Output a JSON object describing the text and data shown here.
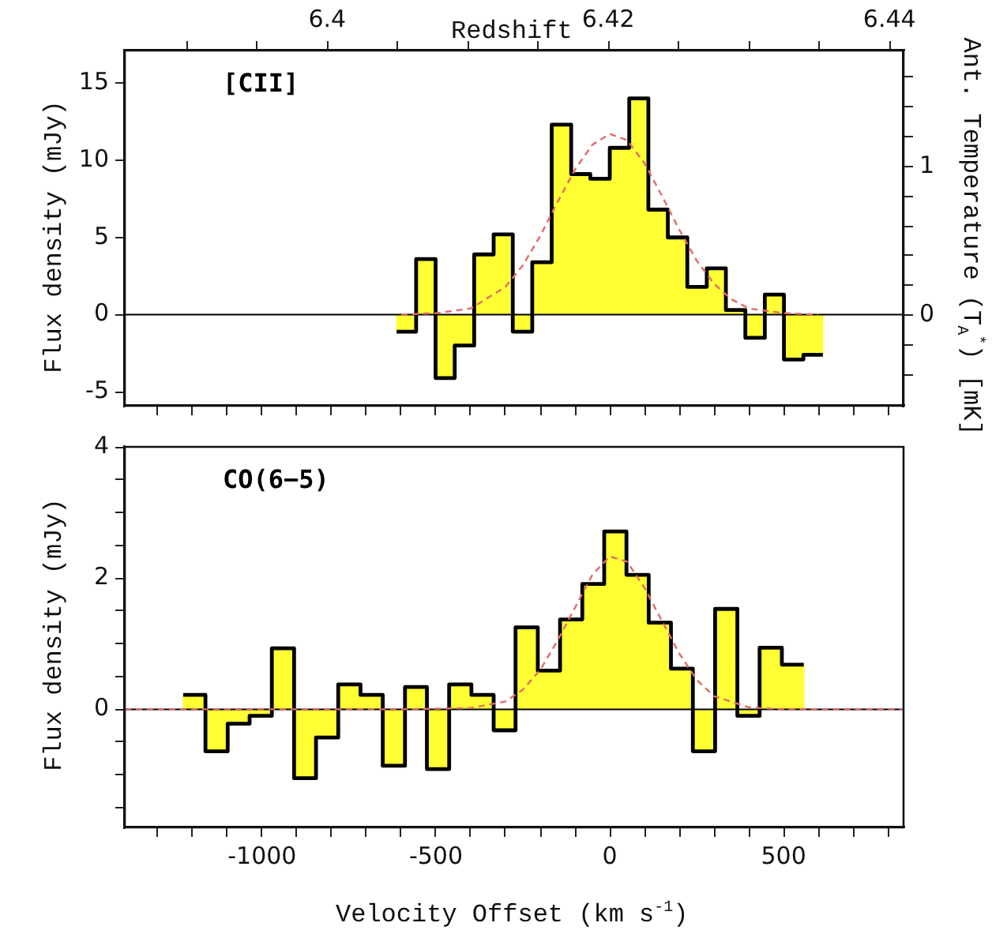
{
  "chart_data": [
    {
      "type": "histogram",
      "annotations": [
        "[CII]"
      ],
      "ylabel": "Flux density (mJy)",
      "y2label": "Ant. Temperature (T$_{A}$$^{*}$) [mK]",
      "x2label": "Redshift",
      "tick_labels": "y",
      "grid": false,
      "legend": false,
      "xlim": [
        -1395,
        845
      ],
      "xticks": [
        {
          "value": -1300,
          "label": null
        },
        {
          "value": -1200,
          "label": null
        },
        {
          "value": -1100,
          "label": null
        },
        -1000,
        {
          "value": -900,
          "label": null
        },
        {
          "value": -800,
          "label": null
        },
        {
          "value": -700,
          "label": null
        },
        {
          "value": -600,
          "label": null
        },
        -500,
        {
          "value": -400,
          "label": null
        },
        {
          "value": -300,
          "label": null
        },
        {
          "value": -200,
          "label": null
        },
        {
          "value": -100,
          "label": null
        },
        0,
        {
          "value": 100,
          "label": null
        },
        {
          "value": 200,
          "label": null
        },
        {
          "value": 300,
          "label": null
        },
        {
          "value": 400,
          "label": null
        },
        500,
        {
          "value": 600,
          "label": null
        },
        {
          "value": 700,
          "label": null
        },
        {
          "value": 800,
          "label": null
        }
      ],
      "ylim": [
        -5.9,
        17.1
      ],
      "yticks": [
        -5,
        0,
        5,
        10,
        15
      ],
      "y2lim": [
        -0.61,
        1.78
      ],
      "y2ticks": [
        {
          "value": -0.4,
          "label": null
        },
        {
          "value": -0.2,
          "label": null
        },
        0,
        {
          "value": 0.2,
          "label": null
        },
        {
          "value": 0.4,
          "label": null
        },
        {
          "value": 0.6,
          "label": null
        },
        {
          "value": 0.8,
          "label": null
        },
        1,
        {
          "value": 1.2,
          "label": null
        },
        {
          "value": 1.4,
          "label": null
        },
        {
          "value": 1.6,
          "label": null
        }
      ],
      "x2lim": [
        6.3856,
        6.441
      ],
      "x2ticks": [
        {
          "value": 6.39,
          "label": null
        },
        {
          "value": 6.395,
          "label": null
        },
        6.4,
        {
          "value": 6.405,
          "label": null
        },
        {
          "value": 6.41,
          "label": null
        },
        {
          "value": 6.415,
          "label": null
        },
        6.42,
        {
          "value": 6.425,
          "label": null
        },
        {
          "value": 6.43,
          "label": null
        },
        {
          "value": 6.435,
          "label": null
        },
        6.44
      ],
      "ref_lines": [
        {
          "axis": "y",
          "value": 0,
          "color": "#000000"
        }
      ],
      "series": [
        {
          "color": "#ffff33",
          "bins": [
            -613,
            -557,
            -501,
            -446,
            -390,
            -334,
            -279,
            -223,
            -167,
            -111,
            -56,
            0,
            56,
            111,
            167,
            223,
            279,
            334,
            390,
            446,
            501,
            557,
            613
          ],
          "values": [
            -1.1,
            3.6,
            -4.1,
            -2.0,
            3.9,
            5.2,
            -1.1,
            3.4,
            12.3,
            9.1,
            8.8,
            10.8,
            14.0,
            6.8,
            5.0,
            1.8,
            3.0,
            0.3,
            -1.5,
            1.3,
            -2.9,
            -2.6
          ]
        },
        {
          "type": "step",
          "color": "#000000",
          "x": [
            -613,
            -557,
            -501,
            -446,
            -390,
            -334,
            -279,
            -223,
            -167,
            -111,
            -56,
            0,
            56,
            111,
            167,
            223,
            279,
            334,
            390,
            446,
            501,
            557,
            613
          ],
          "values": [
            -1.1,
            3.6,
            -4.1,
            -2.0,
            3.9,
            5.2,
            -1.1,
            3.4,
            12.3,
            9.1,
            8.8,
            10.8,
            14.0,
            6.8,
            5.0,
            1.8,
            3.0,
            0.3,
            -1.5,
            1.3,
            -2.9,
            -2.6,
            -2.6
          ]
        },
        {
          "type": "line",
          "color": "#e36b6b",
          "line_style": "dashed",
          "marker": "none",
          "x": [
            -600,
            -500,
            -400,
            -300,
            -250,
            -200,
            -150,
            -100,
            -50,
            0,
            50,
            100,
            150,
            200,
            250,
            300,
            350,
            400,
            500,
            600
          ],
          "values": [
            0,
            0.1,
            0.4,
            1.8,
            3.2,
            5.1,
            7.3,
            9.4,
            11.0,
            11.7,
            11.3,
            9.8,
            7.7,
            5.5,
            3.5,
            2.0,
            1.0,
            0.4,
            0.1,
            0
          ]
        }
      ]
    },
    {
      "type": "histogram",
      "annotations": [
        "CO(6−5)"
      ],
      "ylabel": "Flux density (mJy)",
      "xlabel": "Velocity Offset (km s$^{-1}$)",
      "grid": false,
      "legend": false,
      "xlim": [
        -1395,
        845
      ],
      "xticks": [
        {
          "value": -1300,
          "label": null
        },
        {
          "value": -1200,
          "label": null
        },
        {
          "value": -1100,
          "label": null
        },
        -1000,
        {
          "value": -900,
          "label": null
        },
        {
          "value": -800,
          "label": null
        },
        {
          "value": -700,
          "label": null
        },
        {
          "value": -600,
          "label": null
        },
        -500,
        {
          "value": -400,
          "label": null
        },
        {
          "value": -300,
          "label": null
        },
        {
          "value": -200,
          "label": null
        },
        {
          "value": -100,
          "label": null
        },
        0,
        {
          "value": 100,
          "label": null
        },
        {
          "value": 200,
          "label": null
        },
        {
          "value": 300,
          "label": null
        },
        {
          "value": 400,
          "label": null
        },
        500,
        {
          "value": 600,
          "label": null
        },
        {
          "value": 700,
          "label": null
        },
        {
          "value": 800,
          "label": null
        }
      ],
      "ylim": [
        -1.8,
        4
      ],
      "yticks": [
        {
          "value": -1.5,
          "label": null
        },
        {
          "value": -1,
          "label": null
        },
        {
          "value": -0.5,
          "label": null
        },
        0,
        {
          "value": 0.5,
          "label": null
        },
        {
          "value": 1,
          "label": null
        },
        {
          "value": 1.5,
          "label": null
        },
        2,
        {
          "value": 2.5,
          "label": null
        },
        {
          "value": 3,
          "label": null
        },
        {
          "value": 3.5,
          "label": null
        },
        4
      ],
      "ref_lines": [
        {
          "axis": "y",
          "value": 0,
          "color": "#000000"
        }
      ],
      "series": [
        {
          "color": "#ffff33",
          "bins": [
            -1227,
            -1163,
            -1099,
            -1036,
            -972,
            -908,
            -845,
            -781,
            -717,
            -653,
            -589,
            -526,
            -462,
            -398,
            -334,
            -271,
            -207,
            -143,
            -79,
            -16,
            48,
            112,
            176,
            239,
            303,
            367,
            431,
            495,
            558
          ],
          "values": [
            0.22,
            -0.64,
            -0.22,
            -0.1,
            0.93,
            -1.05,
            -0.43,
            0.38,
            0.22,
            -0.86,
            0.34,
            -0.91,
            0.38,
            0.22,
            -0.32,
            1.25,
            0.59,
            1.37,
            1.91,
            2.71,
            2.05,
            1.32,
            0.62,
            -0.64,
            1.53,
            -0.1,
            0.94,
            0.68
          ]
        },
        {
          "type": "step",
          "color": "#000000",
          "x": [
            -1227,
            -1163,
            -1099,
            -1036,
            -972,
            -908,
            -845,
            -781,
            -717,
            -653,
            -589,
            -526,
            -462,
            -398,
            -334,
            -271,
            -207,
            -143,
            -79,
            -16,
            48,
            112,
            176,
            239,
            303,
            367,
            431,
            495,
            558
          ],
          "values": [
            0.22,
            -0.64,
            -0.22,
            -0.1,
            0.93,
            -1.05,
            -0.43,
            0.38,
            0.22,
            -0.86,
            0.34,
            -0.91,
            0.38,
            0.22,
            -0.32,
            1.25,
            0.59,
            1.37,
            1.91,
            2.71,
            2.05,
            1.32,
            0.62,
            -0.64,
            1.53,
            -0.1,
            0.94,
            0.68,
            0.68
          ]
        },
        {
          "type": "line",
          "color": "#e36b6b",
          "line_style": "dashed",
          "marker": "none",
          "x": [
            -1395,
            -600,
            -400,
            -300,
            -250,
            -200,
            -150,
            -100,
            -50,
            0,
            50,
            100,
            150,
            200,
            250,
            300,
            400,
            500,
            845
          ],
          "values": [
            0,
            0,
            0.02,
            0.12,
            0.3,
            0.6,
            1.05,
            1.55,
            2.05,
            2.33,
            2.25,
            1.85,
            1.35,
            0.85,
            0.45,
            0.2,
            0.03,
            0,
            0
          ]
        }
      ]
    }
  ]
}
